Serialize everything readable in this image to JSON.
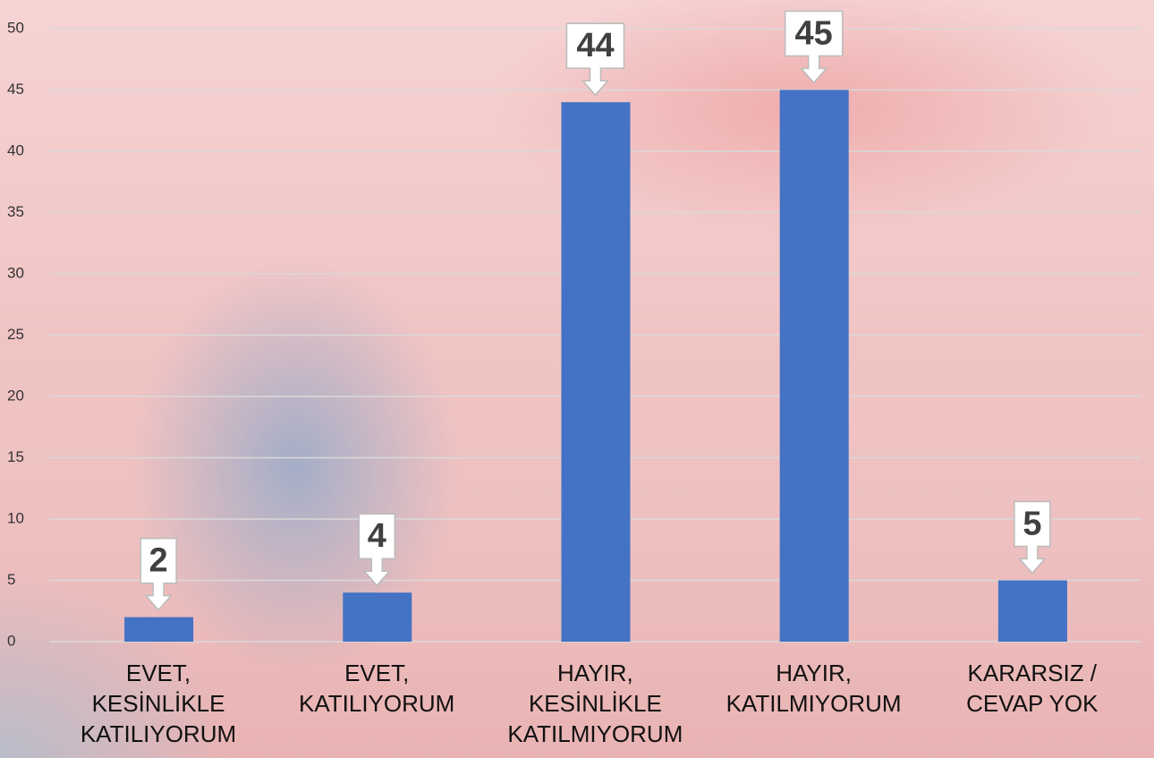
{
  "chart_data": {
    "type": "bar",
    "categories": [
      "EVET,\nKESİNLİKLE\nKATILIYORUM",
      "EVET,\nKATILIYORUM",
      "HAYIR,\nKESİNLİKLE\nKATILMIYORUM",
      "HAYIR,\nKATILMIYORUM",
      "KARARSIZ /\nCEVAP YOK"
    ],
    "values": [
      2,
      4,
      44,
      45,
      5
    ],
    "color": "#4472c4",
    "ylim": [
      0,
      50
    ],
    "yticks": [
      0,
      5,
      10,
      15,
      20,
      25,
      30,
      35,
      40,
      45,
      50
    ],
    "grid": true
  }
}
